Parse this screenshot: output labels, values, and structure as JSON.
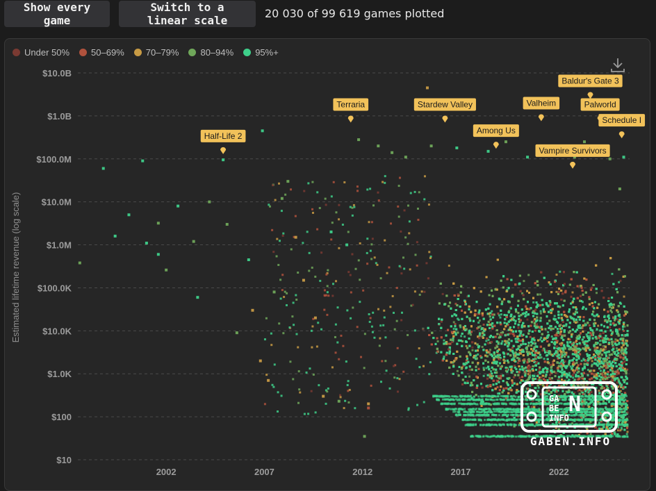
{
  "toolbar": {
    "show_all_label": "Show every game",
    "linear_label": "Switch to a linear scale",
    "plotted_text": "20 030 of 99 619 games plotted"
  },
  "legend": [
    {
      "label": "Under 50%",
      "color": "#7a3a32"
    },
    {
      "label": "50–69%",
      "color": "#b0523d"
    },
    {
      "label": "70–79%",
      "color": "#c79a44"
    },
    {
      "label": "80–94%",
      "color": "#6fa75a"
    },
    {
      "label": "95%+",
      "color": "#3ecf8a"
    }
  ],
  "icons": {
    "download": "download-icon",
    "watermark": "gaben-info-logo"
  },
  "watermark": {
    "text": "GABEN.INFO",
    "logo_letters": [
      "GA",
      "BE",
      "N",
      "INFO"
    ]
  },
  "chart_data": {
    "type": "scatter",
    "title": "",
    "ylabel": "Estimated lifetime revenue (log scale)",
    "xlabel": "",
    "yscale": "log",
    "ylim": [
      10,
      10000000000
    ],
    "xlim": [
      1997.5,
      2025.6
    ],
    "y_ticks": [
      {
        "value": 10000000000,
        "label": "$10.0B"
      },
      {
        "value": 1000000000,
        "label": "$1.0B"
      },
      {
        "value": 100000000,
        "label": "$100.0M"
      },
      {
        "value": 10000000,
        "label": "$10.0M"
      },
      {
        "value": 1000000,
        "label": "$1.0M"
      },
      {
        "value": 100000,
        "label": "$100.0K"
      },
      {
        "value": 10000,
        "label": "$10.0K"
      },
      {
        "value": 1000,
        "label": "$1.0K"
      },
      {
        "value": 100,
        "label": "$100"
      },
      {
        "value": 10,
        "label": "$10"
      }
    ],
    "x_ticks": [
      {
        "value": 2002,
        "label": "2002"
      },
      {
        "value": 2007,
        "label": "2007"
      },
      {
        "value": 2012,
        "label": "2012"
      },
      {
        "value": 2017,
        "label": "2017"
      },
      {
        "value": 2022,
        "label": "2022"
      }
    ],
    "grid": "horizontal-dashed",
    "legend_position": "top-left",
    "annotations": [
      {
        "label": "Half-Life 2",
        "x": 2004.9,
        "y": 120000000
      },
      {
        "label": "Terraria",
        "x": 2011.4,
        "y": 650000000
      },
      {
        "label": "Stardew Valley",
        "x": 2016.2,
        "y": 650000000
      },
      {
        "label": "Among Us",
        "x": 2018.8,
        "y": 160000000
      },
      {
        "label": "Valheim",
        "x": 2021.1,
        "y": 700000000
      },
      {
        "label": "Vampire Survivors",
        "x": 2022.7,
        "y": 55000000
      },
      {
        "label": "Baldur's Gate 3",
        "x": 2023.6,
        "y": 2300000000
      },
      {
        "label": "Schedule I",
        "x": 2025.2,
        "y": 280000000
      },
      {
        "label": "Palworld",
        "x": 2024.1,
        "y": 650000000
      }
    ],
    "series": [
      {
        "name": "Under 50%",
        "color": "#7a3a32"
      },
      {
        "name": "50–69%",
        "color": "#b0523d"
      },
      {
        "name": "70–79%",
        "color": "#c79a44"
      },
      {
        "name": "80–94%",
        "color": "#6fa75a"
      },
      {
        "name": "95%+",
        "color": "#3ecf8a"
      }
    ],
    "sample_points": [
      {
        "x": 1997.6,
        "y": 380000,
        "s": 3
      },
      {
        "x": 1998.8,
        "y": 60000000,
        "s": 4
      },
      {
        "x": 1999.4,
        "y": 1600000,
        "s": 4
      },
      {
        "x": 2000.1,
        "y": 5000000,
        "s": 4
      },
      {
        "x": 2000.8,
        "y": 90000000,
        "s": 4
      },
      {
        "x": 2001.0,
        "y": 1100000,
        "s": 4
      },
      {
        "x": 2001.6,
        "y": 3200000,
        "s": 3
      },
      {
        "x": 2001.6,
        "y": 600000,
        "s": 4
      },
      {
        "x": 2002.0,
        "y": 260000,
        "s": 3
      },
      {
        "x": 2002.6,
        "y": 8000000,
        "s": 4
      },
      {
        "x": 2003.4,
        "y": 1200000,
        "s": 3
      },
      {
        "x": 2003.6,
        "y": 60000,
        "s": 4
      },
      {
        "x": 2004.2,
        "y": 10000000,
        "s": 3
      },
      {
        "x": 2004.9,
        "y": 95000000,
        "s": 4
      },
      {
        "x": 2005.1,
        "y": 3000000,
        "s": 3
      },
      {
        "x": 2005.6,
        "y": 9000,
        "s": 3
      },
      {
        "x": 2006.2,
        "y": 450000,
        "s": 4
      },
      {
        "x": 2006.4,
        "y": 30000,
        "s": 2
      },
      {
        "x": 2006.8,
        "y": 2000,
        "s": 2
      },
      {
        "x": 2006.9,
        "y": 450000000,
        "s": 4
      },
      {
        "x": 2007.2,
        "y": 700,
        "s": 2
      },
      {
        "x": 2007.5,
        "y": 80000,
        "s": 3
      },
      {
        "x": 2007.9,
        "y": 12000000,
        "s": 3
      },
      {
        "x": 2008.2,
        "y": 30000000,
        "s": 3
      },
      {
        "x": 2008.6,
        "y": 1500000,
        "s": 2
      },
      {
        "x": 2009.0,
        "y": 150000,
        "s": 2
      },
      {
        "x": 2009.6,
        "y": 20000,
        "s": 2
      },
      {
        "x": 2010.0,
        "y": 300,
        "s": 2
      },
      {
        "x": 2010.4,
        "y": 2000000,
        "s": 4
      },
      {
        "x": 2010.8,
        "y": 230,
        "s": 3
      },
      {
        "x": 2011.2,
        "y": 1000000,
        "s": 4
      },
      {
        "x": 2011.8,
        "y": 280000000,
        "s": 3
      },
      {
        "x": 2012.1,
        "y": 35,
        "s": 3
      },
      {
        "x": 2012.3,
        "y": 200,
        "s": 2
      },
      {
        "x": 2012.3,
        "y": 160,
        "s": 1
      },
      {
        "x": 2012.8,
        "y": 200000000,
        "s": 3
      },
      {
        "x": 2013.5,
        "y": 140000000,
        "s": 3
      },
      {
        "x": 2014.2,
        "y": 110000000,
        "s": 3
      },
      {
        "x": 2015.3,
        "y": 4500000000,
        "s": 2
      },
      {
        "x": 2015.5,
        "y": 200000000,
        "s": 3
      },
      {
        "x": 2016.8,
        "y": 180000000,
        "s": 4
      },
      {
        "x": 2018.4,
        "y": 150000000,
        "s": 4
      },
      {
        "x": 2019.3,
        "y": 250000000,
        "s": 3
      },
      {
        "x": 2020.4,
        "y": 110000000,
        "s": 4
      },
      {
        "x": 2021.4,
        "y": 150000000,
        "s": 3
      },
      {
        "x": 2022.3,
        "y": 140000000,
        "s": 4
      },
      {
        "x": 2022.8,
        "y": 110000000,
        "s": 3
      },
      {
        "x": 2023.3,
        "y": 250000000,
        "s": 3
      },
      {
        "x": 2024.6,
        "y": 100000000,
        "s": 3
      },
      {
        "x": 2025.3,
        "y": 110000000,
        "s": 4
      },
      {
        "x": 2025.1,
        "y": 20000000,
        "s": 3
      }
    ]
  }
}
